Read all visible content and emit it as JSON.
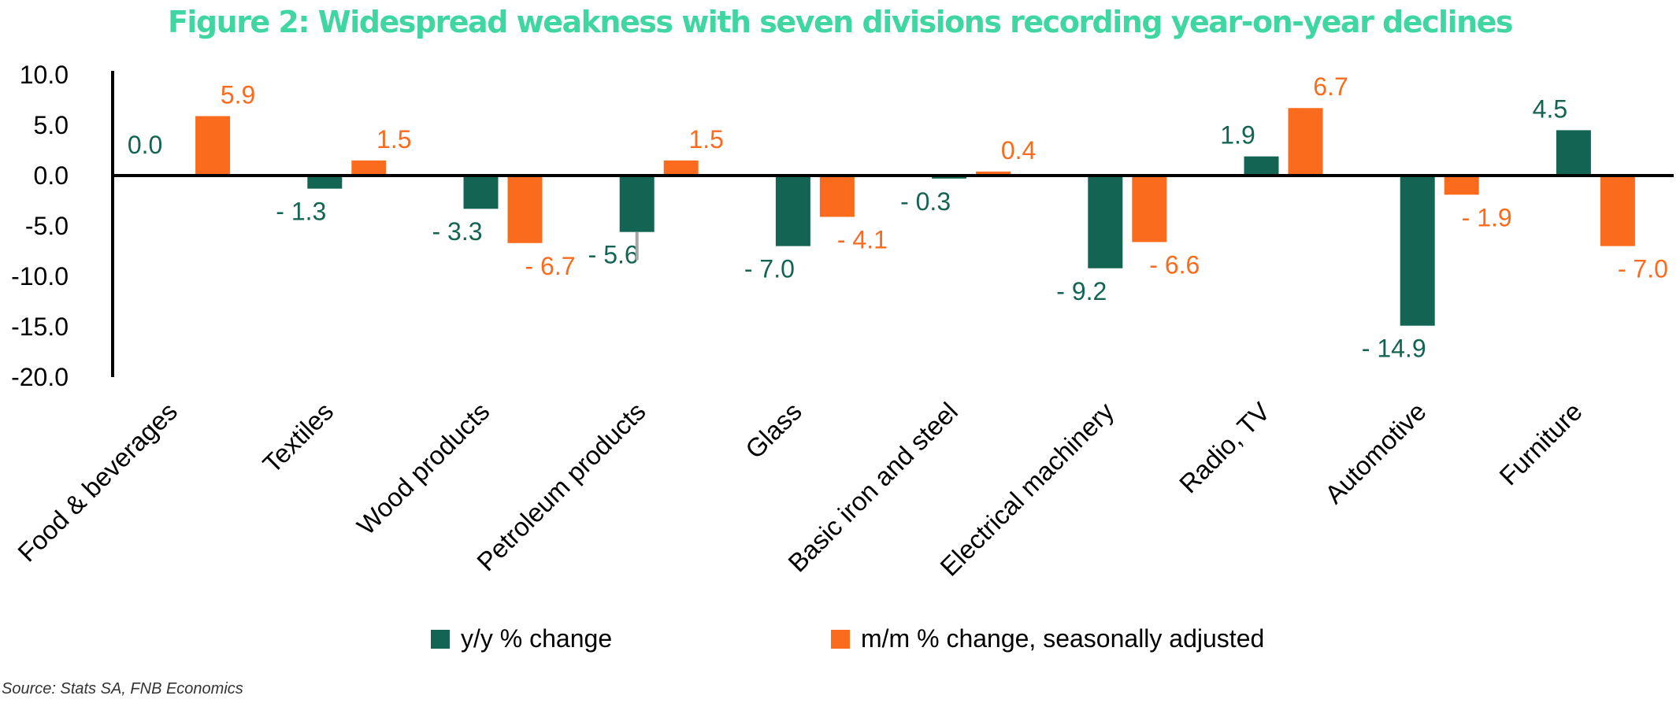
{
  "title": "Figure 2: Widespread weakness with seven divisions recording year-on-year declines",
  "source": "Source: Stats SA, FNB Economics",
  "colors": {
    "title": "#3fd6a2",
    "yy": "#136452",
    "mm": "#fb6b1e",
    "error_bar": "#a6a6a6"
  },
  "chart_data": {
    "type": "bar",
    "title": "Figure 2: Widespread weakness with seven divisions recording year-on-year declines",
    "xlabel": "",
    "ylabel": "",
    "ylim": [
      -20,
      10
    ],
    "yticks": [
      10,
      5,
      0,
      -5,
      -10,
      -15,
      -20
    ],
    "ytick_labels": [
      "10.0",
      "5.0",
      "0.0",
      "-5.0",
      "-10.0",
      "-15.0",
      "-20.0"
    ],
    "grid": false,
    "legend_position": "bottom",
    "categories": [
      "Food & beverages",
      "Textiles",
      "Wood products",
      "Petroleum products",
      "Glass",
      "Basic iron and steel",
      "Electrical machinery",
      "Radio, TV",
      "Automotive",
      "Furniture"
    ],
    "series": [
      {
        "name": "y/y % change",
        "values": [
          0.0,
          -1.3,
          -3.3,
          -5.6,
          -7.0,
          -0.3,
          -9.2,
          1.9,
          -14.9,
          4.5
        ],
        "labels": [
          "0.0",
          "- 1.3",
          "- 3.3",
          "- 5.6",
          "- 7.0",
          "- 0.3",
          "- 9.2",
          "1.9",
          "- 14.9",
          "4.5"
        ]
      },
      {
        "name": "m/m % change, seasonally adjusted",
        "values": [
          5.9,
          1.5,
          -6.7,
          1.5,
          -4.1,
          0.4,
          -6.6,
          6.7,
          -1.9,
          -7.0
        ],
        "labels": [
          "5.9",
          "1.5",
          "- 6.7",
          "1.5",
          "- 4.1",
          "0.4",
          "- 6.6",
          "6.7",
          "- 1.9",
          "- 7.0"
        ]
      }
    ],
    "error_bars": [
      {
        "category": "Petroleum products",
        "series": "y/y % change",
        "low": -8.4,
        "high": -5.6
      }
    ]
  }
}
